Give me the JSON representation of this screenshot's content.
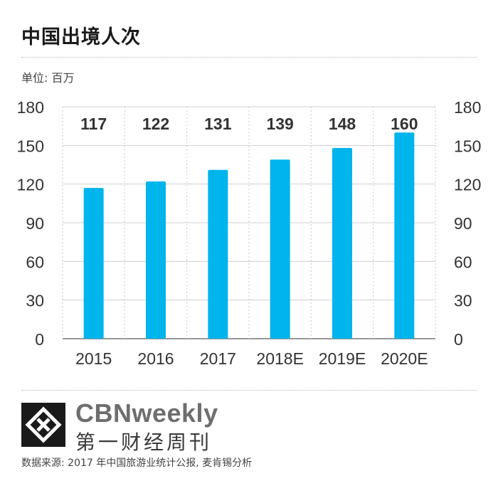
{
  "title": "中国出境人次",
  "unit_label": "单位: 百万",
  "chart_data": {
    "type": "bar",
    "title": "中国出境人次",
    "unit": "单位: 百万",
    "categories": [
      "2015",
      "2016",
      "2017",
      "2018E",
      "2019E",
      "2020E"
    ],
    "values": [
      117,
      122,
      131,
      139,
      148,
      160
    ],
    "value_labels": [
      "117",
      "122",
      "131",
      "139",
      "148",
      "160"
    ],
    "ylim": [
      0,
      180
    ],
    "yticks": [
      0,
      30,
      60,
      90,
      120,
      150,
      180
    ],
    "ytick_labels": [
      "0",
      "30",
      "60",
      "90",
      "120",
      "150",
      "180"
    ],
    "axes": "left-and-right",
    "grid": true,
    "bar_color": "#00b4ec"
  },
  "brand": {
    "name": "CBNweekly",
    "name_cn": "第一财经周刊",
    "logo_icon": "cbn-logo-icon"
  },
  "source": "数据来源: 2017 年中国旅游业统计公报, 麦肯锡分析"
}
